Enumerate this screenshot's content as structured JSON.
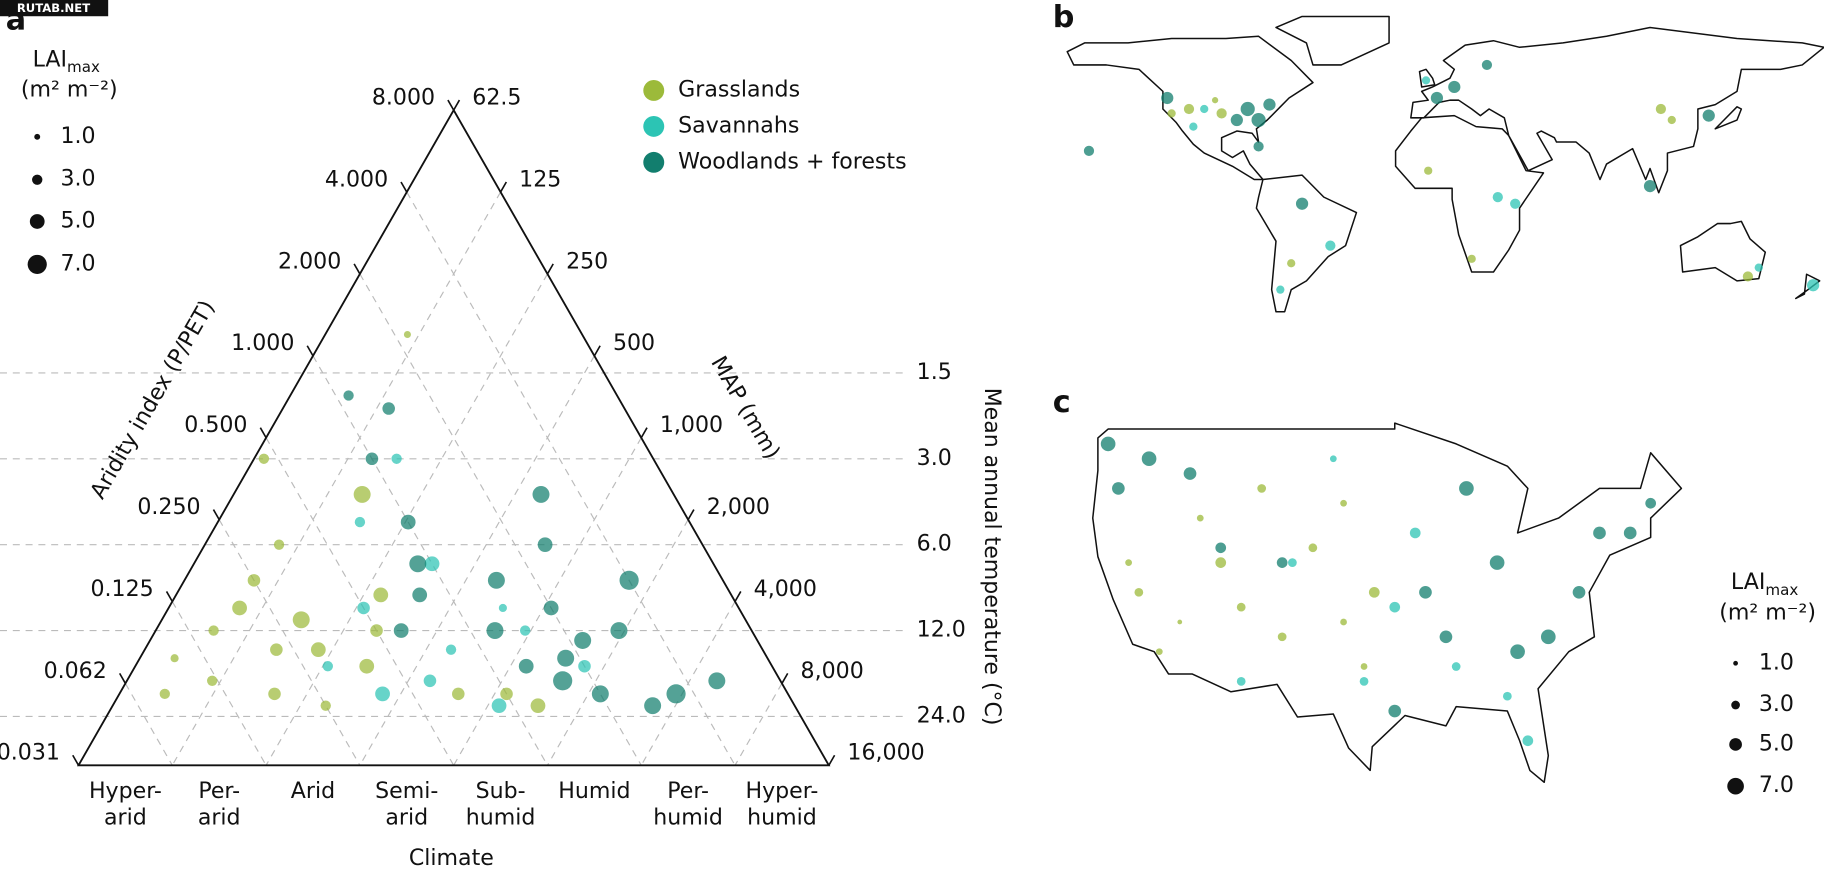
{
  "watermark": "RUTAB.NET",
  "chart_data": [
    {
      "type": "ternary",
      "panel_label": "a",
      "size_legend": {
        "title": "LAI",
        "title_sub": "max",
        "unit": "(m² m⁻²)",
        "ticks": [
          {
            "value": 1,
            "label": "1.0"
          },
          {
            "value": 3,
            "label": "3.0"
          },
          {
            "value": 5,
            "label": "5.0"
          },
          {
            "value": 7,
            "label": "7.0"
          }
        ]
      },
      "aridity_label": "Aridity index (P/PET)",
      "aridity_lim": [
        8,
        0.03125
      ],
      "aridity_ticks": [
        {
          "value": 8,
          "label": "8.000"
        },
        {
          "value": 4,
          "label": "4.000"
        },
        {
          "value": 2,
          "label": "2.000"
        },
        {
          "value": 1,
          "label": "1.000"
        },
        {
          "value": 0.5,
          "label": "0.500"
        },
        {
          "value": 0.25,
          "label": "0.250"
        },
        0.125,
        {
          "value": 0.0625,
          "label": "0.062"
        },
        {
          "value": 0.03125,
          "label": "0.031"
        }
      ],
      "map_label": "MAP (mm)",
      "map_lim": [
        62.5,
        16000
      ],
      "map_ticks": [
        62.5,
        125,
        250,
        500,
        {
          "value": 1000,
          "label": "1,000"
        },
        {
          "value": 2000,
          "label": "2,000"
        },
        {
          "value": 4000,
          "label": "4,000"
        },
        {
          "value": 8000,
          "label": "8,000"
        },
        {
          "value": 16000,
          "label": "16,000"
        }
      ],
      "temp_label": "Mean annual temperature (°C)",
      "temp_lim": [
        0.18,
        35.6
      ],
      "temp_scale": "log",
      "temp_ticks": [
        1.5,
        {
          "value": 3,
          "label": "3.0"
        },
        {
          "value": 6,
          "label": "6.0"
        },
        {
          "value": 12,
          "label": "12.0"
        },
        {
          "value": 24,
          "label": "24.0"
        }
      ],
      "climate_label": "Climate",
      "climate_classes": [
        [
          "Hyper-",
          "arid"
        ],
        [
          "Per-",
          "arid"
        ],
        [
          "Arid"
        ],
        [
          "Semi-",
          "arid"
        ],
        [
          "Sub-",
          "humid"
        ],
        [
          "Humid"
        ],
        [
          "Per-",
          "humid"
        ],
        [
          "Hyper-",
          "humid"
        ]
      ],
      "series": [
        {
          "name": "Grasslands",
          "color": "#9cba3a",
          "aridity": [
            0.15,
            0.2,
            0.25,
            0.3,
            0.12,
            0.18,
            0.35,
            0.4,
            0.5,
            0.6,
            0.8,
            0.7,
            0.25,
            0.1,
            0.45,
            1.0,
            1.2,
            0.3,
            0.22,
            0.08,
            2.2
          ],
          "temperature": [
            12,
            10,
            8,
            14,
            18,
            20,
            6,
            16,
            12,
            9,
            4,
            20,
            22,
            15,
            3,
            20,
            22,
            11,
            14,
            20,
            1.1
          ],
          "lai": [
            3,
            5,
            4,
            5,
            3,
            4,
            3,
            5,
            4,
            5,
            6,
            4,
            3,
            2,
            3,
            4,
            5,
            6,
            4,
            3,
            1.5
          ]
        },
        {
          "name": "Savannahs",
          "color": "#2cc4b4",
          "aridity": [
            0.5,
            0.8,
            1.0,
            0.6,
            1.5,
            0.4,
            1.2,
            2,
            0.7,
            0.9,
            1.4,
            0.3
          ],
          "temperature": [
            10,
            14,
            7,
            18,
            12,
            20,
            3,
            16,
            5,
            22,
            10,
            16
          ],
          "lai": [
            4,
            3,
            5,
            4,
            3,
            5,
            3,
            4,
            3,
            5,
            2,
            3
          ]
        },
        {
          "name": "Woodlands + forests",
          "color": "#127e6e",
          "aridity": [
            1.0,
            1.5,
            2,
            1.2,
            0.8,
            1.8,
            2.5,
            3,
            1.0,
            1.4,
            2,
            3.5,
            4,
            3,
            0.6,
            1.6,
            2.2,
            1.1,
            5,
            2.8,
            1.3,
            0.9
          ],
          "temperature": [
            5,
            8,
            10,
            12,
            9,
            15,
            6,
            12,
            3,
            2,
            20,
            20,
            8,
            4,
            12,
            18,
            13,
            1.8,
            18,
            22,
            16,
            7
          ],
          "lai": [
            5,
            6,
            5,
            6,
            5,
            6,
            5,
            6,
            4,
            4,
            6,
            7,
            7,
            6,
            5,
            7,
            6,
            3,
            6,
            6,
            5,
            6
          ]
        }
      ]
    },
    {
      "type": "world-map",
      "panel_label": "b",
      "series": [
        {
          "color": "#9cba3a",
          "lon": [
            -120,
            -112,
            -100,
            -97,
            -65,
            -2,
            18,
            105,
            110,
            145
          ],
          "lat": [
            38,
            40,
            44,
            38,
            -30,
            12,
            -28,
            40,
            35,
            -36
          ],
          "lai": [
            3,
            4,
            2,
            4,
            3,
            3,
            3,
            4,
            3,
            4
          ]
        },
        {
          "color": "#2cc4b4",
          "lon": [
            -105,
            -110,
            -47,
            -70,
            -3,
            30,
            38,
            150,
            175
          ],
          "lat": [
            40,
            32,
            -22,
            -42,
            53,
            0,
            -3,
            -32,
            -40
          ],
          "lai": [
            3,
            3,
            4,
            3,
            3,
            4,
            4,
            3,
            5
          ]
        },
        {
          "color": "#127e6e",
          "lon": [
            -122,
            -90,
            -85,
            -80,
            -75,
            -80,
            -158,
            -60,
            2,
            10,
            25,
            127,
            100
          ],
          "lat": [
            45,
            35,
            40,
            35,
            42,
            23,
            21,
            -3,
            45,
            50,
            60,
            37,
            5
          ],
          "lai": [
            5,
            5,
            6,
            6,
            5,
            4,
            4,
            5,
            5,
            5,
            4,
            5,
            5
          ]
        }
      ]
    },
    {
      "type": "us-map",
      "panel_label": "c",
      "size_legend": {
        "title": "LAI",
        "title_sub": "max",
        "unit": "(m² m⁻²)",
        "ticks": [
          {
            "value": 1,
            "label": "1.0"
          },
          {
            "value": 3,
            "label": "3.0"
          },
          {
            "value": 5,
            "label": "5.0"
          },
          {
            "value": 7,
            "label": "7.0"
          }
        ]
      },
      "series": [
        {
          "color": "#9cba3a",
          "lon": [
            -120,
            -112,
            -100,
            -97,
            -118,
            -106,
            -100,
            -108,
            -114,
            -103,
            -121,
            -98,
            -110,
            -116
          ],
          "lat": [
            38,
            40,
            44,
            38,
            34,
            35,
            36,
            45,
            43,
            41,
            40,
            33,
            37,
            36
          ],
          "lai": [
            3,
            4,
            2,
            4,
            2,
            3,
            2,
            3,
            2,
            3,
            2,
            2,
            3,
            1
          ]
        },
        {
          "color": "#2cc4b4",
          "lon": [
            -105,
            -110,
            -82,
            -98,
            -93,
            -84,
            -95,
            -101,
            -89
          ],
          "lat": [
            40,
            32,
            28,
            32,
            42,
            31,
            37,
            47,
            33
          ],
          "lai": [
            3,
            3,
            4,
            3,
            4,
            3,
            4,
            2,
            3
          ]
        },
        {
          "color": "#127e6e",
          "lon": [
            -122,
            -95,
            -90,
            -85,
            -80,
            -75,
            -70,
            -115,
            -88,
            -123,
            -77,
            -106,
            -92,
            -83,
            -72,
            -119,
            -112
          ],
          "lat": [
            45,
            30,
            35,
            40,
            35,
            42,
            44,
            46,
            45,
            48,
            38,
            40,
            38,
            34,
            42,
            47,
            41
          ],
          "lai": [
            5,
            5,
            5,
            6,
            6,
            5,
            4,
            5,
            6,
            6,
            5,
            4,
            5,
            6,
            5,
            6,
            4
          ]
        }
      ]
    }
  ]
}
